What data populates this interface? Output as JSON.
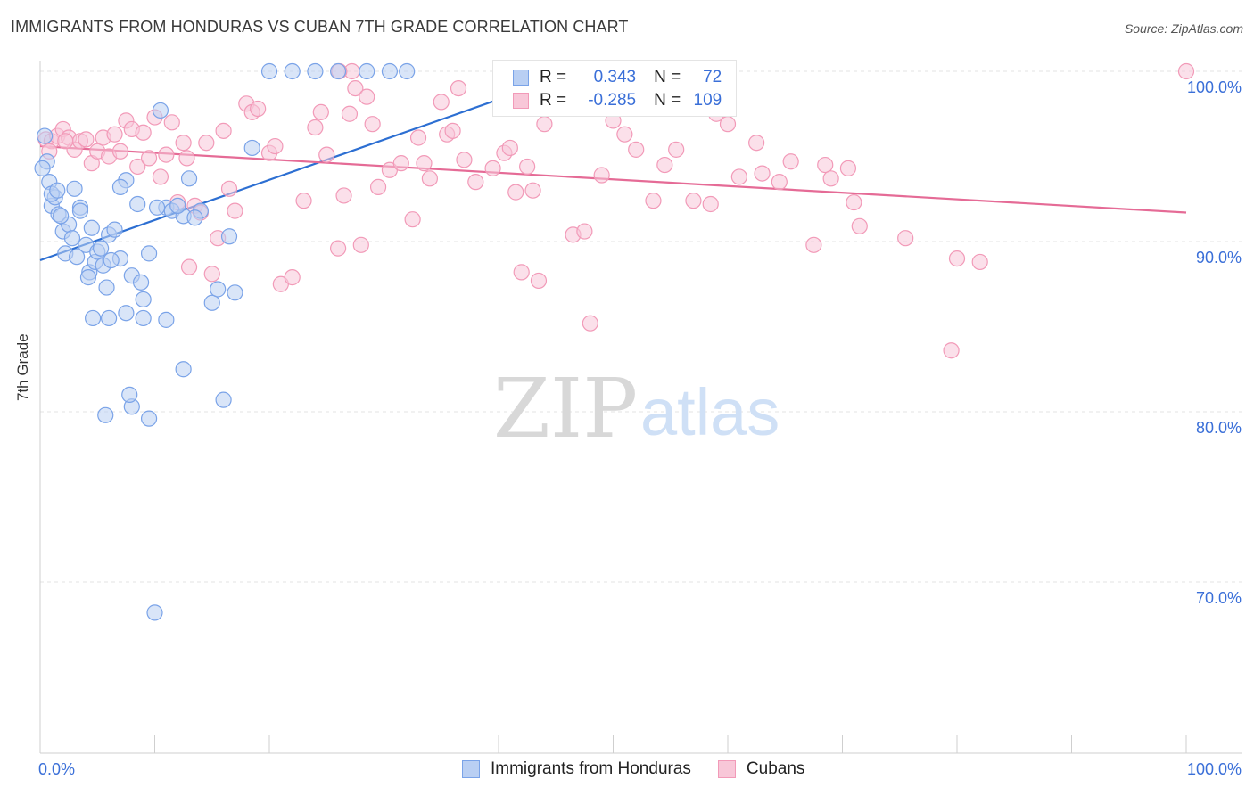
{
  "chart_data": {
    "type": "scatter",
    "title": "IMMIGRANTS FROM HONDURAS VS CUBAN 7TH GRADE CORRELATION CHART",
    "source": "Source: ZipAtlas.com",
    "xlabel": "",
    "ylabel": "7th Grade",
    "xlim": [
      0,
      100
    ],
    "ylim": [
      60.5,
      101
    ],
    "x_tick_labels": [
      "0.0%",
      "100.0%"
    ],
    "y_ticks": [
      100,
      90,
      80,
      70
    ],
    "y_tick_labels": [
      "100.0%",
      "90.0%",
      "80.0%",
      "70.0%"
    ],
    "grid": true,
    "watermark": {
      "zip": "ZIP",
      "atlas": "atlas"
    },
    "legend": {
      "placement": "top-center",
      "rows": [
        {
          "r_label": "R =",
          "r_value": "0.343",
          "n_label": "N =",
          "n_value": "72"
        },
        {
          "r_label": "R =",
          "r_value": "-0.285",
          "n_label": "N =",
          "n_value": "109"
        }
      ]
    },
    "series": [
      {
        "name": "Immigrants from Honduras",
        "color": "#7aa3e8",
        "fill": "#b9cff3",
        "trend": {
          "x": [
            0,
            47
          ],
          "y": [
            88.9,
            100.0
          ],
          "color": "#2d6fd2"
        },
        "points": [
          [
            0.4,
            96.2
          ],
          [
            0.6,
            94.7
          ],
          [
            0.8,
            93.5
          ],
          [
            1.0,
            92.1
          ],
          [
            1.3,
            92.6
          ],
          [
            1.6,
            91.6
          ],
          [
            2.0,
            90.6
          ],
          [
            2.2,
            89.3
          ],
          [
            2.5,
            91.0
          ],
          [
            3.0,
            93.1
          ],
          [
            3.5,
            92.0
          ],
          [
            4.0,
            89.8
          ],
          [
            4.3,
            88.2
          ],
          [
            4.5,
            90.8
          ],
          [
            4.8,
            88.8
          ],
          [
            5.0,
            89.4
          ],
          [
            5.5,
            88.6
          ],
          [
            5.8,
            87.3
          ],
          [
            6.0,
            90.4
          ],
          [
            6.5,
            90.7
          ],
          [
            7.0,
            89.0
          ],
          [
            7.5,
            93.6
          ],
          [
            8.0,
            88.0
          ],
          [
            8.5,
            92.2
          ],
          [
            9.0,
            86.6
          ],
          [
            9.5,
            89.3
          ],
          [
            10.5,
            97.7
          ],
          [
            11.0,
            92.0
          ],
          [
            11.5,
            91.8
          ],
          [
            12.5,
            91.5
          ],
          [
            13.0,
            93.7
          ],
          [
            14.0,
            91.8
          ],
          [
            15.0,
            86.4
          ],
          [
            16.5,
            90.3
          ],
          [
            17.0,
            87.0
          ],
          [
            18.5,
            95.5
          ],
          [
            20.0,
            100.0
          ],
          [
            22.0,
            100.0
          ],
          [
            24.0,
            100.0
          ],
          [
            26.0,
            100.0
          ],
          [
            28.5,
            100.0
          ],
          [
            30.5,
            100.0
          ],
          [
            32.0,
            100.0
          ],
          [
            4.6,
            85.5
          ],
          [
            6.0,
            85.5
          ],
          [
            7.5,
            85.8
          ],
          [
            9.0,
            85.5
          ],
          [
            11.0,
            85.4
          ],
          [
            5.7,
            79.8
          ],
          [
            8.0,
            80.3
          ],
          [
            9.5,
            79.6
          ],
          [
            7.8,
            81.0
          ],
          [
            12.5,
            82.5
          ],
          [
            16.0,
            80.7
          ],
          [
            10.0,
            68.2
          ],
          [
            1.0,
            92.8
          ],
          [
            1.8,
            91.5
          ],
          [
            2.8,
            90.2
          ],
          [
            3.5,
            91.8
          ],
          [
            4.2,
            87.9
          ],
          [
            5.3,
            89.6
          ],
          [
            6.2,
            88.9
          ],
          [
            7.0,
            93.2
          ],
          [
            8.8,
            87.6
          ],
          [
            10.2,
            92.0
          ],
          [
            12.0,
            92.1
          ],
          [
            13.5,
            91.4
          ],
          [
            15.5,
            87.2
          ],
          [
            3.2,
            89.1
          ],
          [
            47.0,
            100.0
          ],
          [
            0.2,
            94.3
          ],
          [
            1.5,
            93.0
          ]
        ]
      },
      {
        "name": "Cubans",
        "color": "#f29ab8",
        "fill": "#f8c7d8",
        "trend": {
          "x": [
            0,
            100
          ],
          "y": [
            95.6,
            91.7
          ],
          "color": "#e56b96"
        },
        "points": [
          [
            0.5,
            96.0
          ],
          [
            1.0,
            95.9
          ],
          [
            1.5,
            96.2
          ],
          [
            2.0,
            96.6
          ],
          [
            2.5,
            96.1
          ],
          [
            3.0,
            95.4
          ],
          [
            3.5,
            95.9
          ],
          [
            4.0,
            96.0
          ],
          [
            4.5,
            94.6
          ],
          [
            5.0,
            95.3
          ],
          [
            5.5,
            96.1
          ],
          [
            6.0,
            95.0
          ],
          [
            6.5,
            96.3
          ],
          [
            7.0,
            95.3
          ],
          [
            7.5,
            97.1
          ],
          [
            8.0,
            96.6
          ],
          [
            8.5,
            94.4
          ],
          [
            9.0,
            96.4
          ],
          [
            9.5,
            94.9
          ],
          [
            10.0,
            97.3
          ],
          [
            10.5,
            93.8
          ],
          [
            11.0,
            95.1
          ],
          [
            11.5,
            97.0
          ],
          [
            12.0,
            92.3
          ],
          [
            12.5,
            95.8
          ],
          [
            13.0,
            88.5
          ],
          [
            13.5,
            92.1
          ],
          [
            14.0,
            91.7
          ],
          [
            14.5,
            95.8
          ],
          [
            15.0,
            88.1
          ],
          [
            15.5,
            90.2
          ],
          [
            16.0,
            96.5
          ],
          [
            16.5,
            93.1
          ],
          [
            17.0,
            91.8
          ],
          [
            18.0,
            98.1
          ],
          [
            18.5,
            97.6
          ],
          [
            19.0,
            97.8
          ],
          [
            20.0,
            95.2
          ],
          [
            20.5,
            95.6
          ],
          [
            21.0,
            87.5
          ],
          [
            22.0,
            87.9
          ],
          [
            23.0,
            92.4
          ],
          [
            24.0,
            96.7
          ],
          [
            24.5,
            97.6
          ],
          [
            25.0,
            95.1
          ],
          [
            26.0,
            89.6
          ],
          [
            26.5,
            92.7
          ],
          [
            27.0,
            97.5
          ],
          [
            27.5,
            99.0
          ],
          [
            28.0,
            89.8
          ],
          [
            28.5,
            98.5
          ],
          [
            29.0,
            96.9
          ],
          [
            29.5,
            93.2
          ],
          [
            30.5,
            94.2
          ],
          [
            31.5,
            94.6
          ],
          [
            32.5,
            91.3
          ],
          [
            33.0,
            96.1
          ],
          [
            33.5,
            94.6
          ],
          [
            34.0,
            93.7
          ],
          [
            35.0,
            98.2
          ],
          [
            35.5,
            96.3
          ],
          [
            36.0,
            96.5
          ],
          [
            37.0,
            94.8
          ],
          [
            38.0,
            93.5
          ],
          [
            39.5,
            94.3
          ],
          [
            40.5,
            95.2
          ],
          [
            41.5,
            92.9
          ],
          [
            42.0,
            88.2
          ],
          [
            42.5,
            94.4
          ],
          [
            43.0,
            93.0
          ],
          [
            43.5,
            87.7
          ],
          [
            44.0,
            96.9
          ],
          [
            46.5,
            90.4
          ],
          [
            47.5,
            90.6
          ],
          [
            48.0,
            85.2
          ],
          [
            49.0,
            93.9
          ],
          [
            50.0,
            97.1
          ],
          [
            51.0,
            96.3
          ],
          [
            52.0,
            95.4
          ],
          [
            53.5,
            92.4
          ],
          [
            54.5,
            94.5
          ],
          [
            55.5,
            95.4
          ],
          [
            57.0,
            92.4
          ],
          [
            59.0,
            97.5
          ],
          [
            60.0,
            96.9
          ],
          [
            61.0,
            93.8
          ],
          [
            62.5,
            95.8
          ],
          [
            63.0,
            94.0
          ],
          [
            64.5,
            93.5
          ],
          [
            65.5,
            94.7
          ],
          [
            67.5,
            89.8
          ],
          [
            68.5,
            94.5
          ],
          [
            69.0,
            93.7
          ],
          [
            70.5,
            94.3
          ],
          [
            71.0,
            92.3
          ],
          [
            71.5,
            90.9
          ],
          [
            75.5,
            90.2
          ],
          [
            79.5,
            83.6
          ],
          [
            80.0,
            89.0
          ],
          [
            82.0,
            88.8
          ],
          [
            100.0,
            100.0
          ],
          [
            0.8,
            95.3
          ],
          [
            2.2,
            95.9
          ],
          [
            12.8,
            94.9
          ],
          [
            27.2,
            100.0
          ],
          [
            26.1,
            100.0
          ],
          [
            36.5,
            99.0
          ],
          [
            41.0,
            95.5
          ],
          [
            58.5,
            92.2
          ]
        ]
      }
    ]
  }
}
